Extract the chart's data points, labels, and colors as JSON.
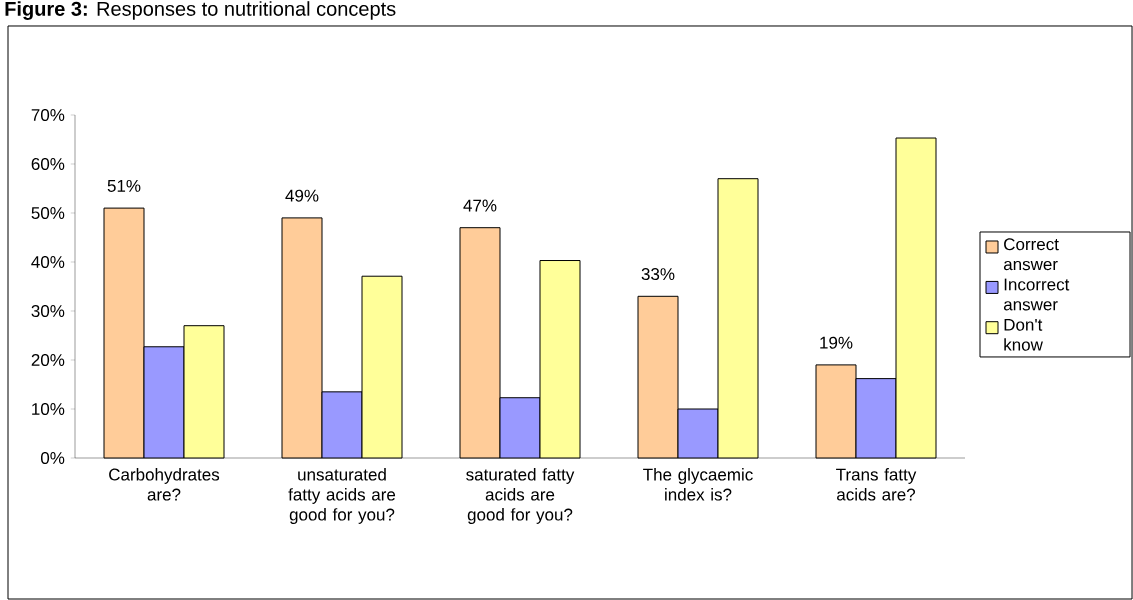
{
  "chart_data": {
    "type": "bar",
    "title": "**Figure 3:** Responses to nutritional concepts",
    "categories": [
      "Carbohydrates are?",
      "unsaturated fatty acids are good for you?",
      "saturated fatty acids are good for you?",
      "The glycaemic index is?",
      "Trans fatty acids are?"
    ],
    "series": [
      {
        "name": "Correct answer",
        "color": "#ffcc99",
        "values": [
          51,
          49,
          47,
          33,
          19
        ],
        "value_labels": [
          "51%",
          "49%",
          "47%",
          "33%",
          "19%"
        ]
      },
      {
        "name": "Incorrect answer",
        "color": "#9999ff",
        "values": [
          22.7,
          13.5,
          12.3,
          10,
          16.2
        ]
      },
      {
        "name": "Don't know",
        "color": "#ffff99",
        "values": [
          27,
          37.1,
          40.3,
          57,
          65.3
        ]
      }
    ],
    "ylim": [
      0,
      70
    ],
    "yticks": [
      {
        "value": 0,
        "label": "0%"
      },
      {
        "value": 10,
        "label": "10%"
      },
      {
        "value": 20,
        "label": "20%"
      },
      {
        "value": 30,
        "label": "30%"
      },
      {
        "value": 40,
        "label": "40%"
      },
      {
        "value": 50,
        "label": "50%"
      },
      {
        "value": 60,
        "label": "60%"
      },
      {
        "value": 70,
        "label": "70%"
      }
    ],
    "legend": "right"
  }
}
